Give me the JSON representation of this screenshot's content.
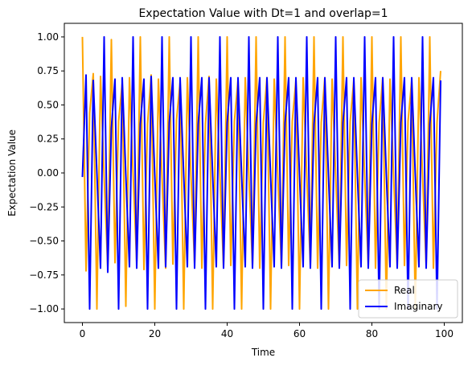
{
  "chart_data": {
    "type": "line",
    "title": "Expectation Value with Dt=1 and overlap=1",
    "xlabel": "Time",
    "ylabel": "Expectation Value",
    "xlim": [
      -5,
      105
    ],
    "ylim": [
      -1.1,
      1.1
    ],
    "xticks": [
      0,
      20,
      40,
      60,
      80,
      100
    ],
    "xtick_labels": [
      "0",
      "20",
      "40",
      "60",
      "80",
      "100"
    ],
    "yticks": [
      -1.0,
      -0.75,
      -0.5,
      -0.25,
      0.0,
      0.25,
      0.5,
      0.75,
      1.0
    ],
    "ytick_labels": [
      "−1.00",
      "−0.75",
      "−0.50",
      "−0.25",
      "0.00",
      "0.25",
      "0.50",
      "0.75",
      "1.00"
    ],
    "grid": false,
    "legend_position": "lower-right",
    "x": [
      0,
      1,
      2,
      3,
      4,
      5,
      6,
      7,
      8,
      9,
      10,
      11,
      12,
      13,
      14,
      15,
      16,
      17,
      18,
      19,
      20,
      21,
      22,
      23,
      24,
      25,
      26,
      27,
      28,
      29,
      30,
      31,
      32,
      33,
      34,
      35,
      36,
      37,
      38,
      39,
      40,
      41,
      42,
      43,
      44,
      45,
      46,
      47,
      48,
      49,
      50,
      51,
      52,
      53,
      54,
      55,
      56,
      57,
      58,
      59,
      60,
      61,
      62,
      63,
      64,
      65,
      66,
      67,
      68,
      69,
      70,
      71,
      72,
      73,
      74,
      75,
      76,
      77,
      78,
      79,
      80,
      81,
      82,
      83,
      84,
      85,
      86,
      87,
      88,
      89,
      90,
      91,
      92,
      93,
      94,
      95,
      96,
      97,
      98,
      99
    ],
    "series": [
      {
        "name": "Real",
        "color": "#FFA500",
        "values": [
          1.0,
          -0.72,
          0.44,
          0.73,
          -1.0,
          0.71,
          -0.03,
          -0.69,
          0.98,
          -0.66,
          0.38,
          0.66,
          -0.98,
          0.7,
          0.0,
          -0.66,
          1.0,
          -0.71,
          0.36,
          0.72,
          -1.0,
          0.69,
          -0.03,
          -0.7,
          1.0,
          -0.67,
          0.39,
          0.67,
          -1.0,
          0.7,
          -0.02,
          -0.67,
          1.0,
          -0.7,
          0.36,
          0.71,
          -1.0,
          0.69,
          -0.02,
          -0.69,
          1.0,
          -0.68,
          0.38,
          0.68,
          -1.0,
          0.7,
          -0.02,
          -0.68,
          1.0,
          -0.7,
          0.37,
          0.7,
          -1.0,
          0.69,
          -0.02,
          -0.69,
          1.0,
          -0.68,
          0.38,
          0.68,
          -1.0,
          0.7,
          -0.02,
          -0.68,
          1.0,
          -0.7,
          0.37,
          0.7,
          -1.0,
          0.69,
          -0.02,
          -0.69,
          1.0,
          -0.68,
          0.38,
          0.68,
          -1.0,
          0.7,
          -0.02,
          -0.68,
          1.0,
          -0.7,
          0.37,
          0.7,
          -1.0,
          0.69,
          -0.02,
          -0.69,
          1.0,
          -0.68,
          0.38,
          0.68,
          -1.0,
          0.7,
          -0.02,
          -0.68,
          1.0,
          -0.7,
          0.37,
          0.75
        ]
      },
      {
        "name": "Imaginary",
        "color": "#0000FF",
        "values": [
          -0.03,
          0.72,
          -1.0,
          0.68,
          0.0,
          -0.7,
          1.0,
          -0.73,
          0.33,
          0.69,
          -1.0,
          0.7,
          -0.02,
          -0.69,
          1.0,
          -0.7,
          0.36,
          0.69,
          -1.0,
          0.71,
          -0.02,
          -0.7,
          1.0,
          -0.69,
          0.37,
          0.7,
          -1.0,
          0.7,
          -0.02,
          -0.69,
          1.0,
          -0.7,
          0.36,
          0.7,
          -1.0,
          0.7,
          -0.02,
          -0.69,
          1.0,
          -0.7,
          0.37,
          0.7,
          -1.0,
          0.7,
          -0.02,
          -0.69,
          1.0,
          -0.7,
          0.36,
          0.7,
          -1.0,
          0.7,
          -0.02,
          -0.69,
          1.0,
          -0.7,
          0.37,
          0.7,
          -1.0,
          0.7,
          -0.02,
          -0.69,
          1.0,
          -0.7,
          0.36,
          0.7,
          -1.0,
          0.7,
          -0.02,
          -0.69,
          1.0,
          -0.7,
          0.37,
          0.7,
          -1.0,
          0.7,
          -0.02,
          -0.69,
          1.0,
          -0.7,
          0.36,
          0.7,
          -1.0,
          0.7,
          -0.02,
          -0.69,
          1.0,
          -0.7,
          0.37,
          0.7,
          -1.0,
          0.7,
          -0.02,
          -0.69,
          1.0,
          -0.7,
          0.36,
          0.7,
          -1.0,
          0.68
        ]
      }
    ]
  }
}
